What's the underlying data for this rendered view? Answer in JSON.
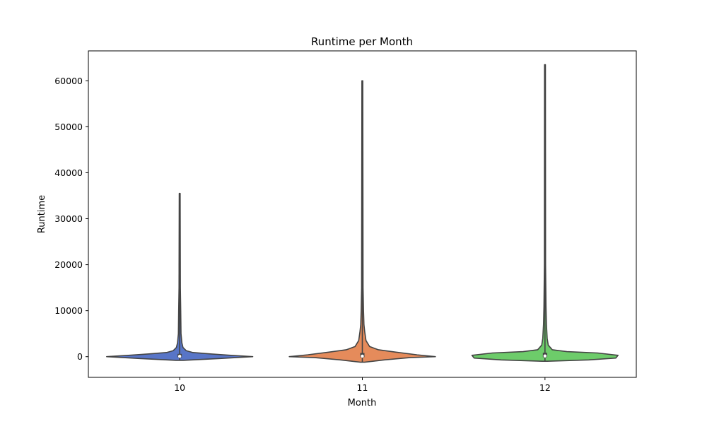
{
  "chart_data": {
    "type": "violin",
    "title": "Runtime per Month",
    "xlabel": "Month",
    "ylabel": "Runtime",
    "categories": [
      "10",
      "11",
      "12"
    ],
    "ylim": [
      -4500,
      66500
    ],
    "yticks": [
      0,
      10000,
      20000,
      30000,
      40000,
      50000,
      60000
    ],
    "yticklabels": [
      "0",
      "10000",
      "20000",
      "30000",
      "40000",
      "50000",
      "60000"
    ],
    "grid": false,
    "legend": "none",
    "colors": [
      "#5875c7",
      "#e58b5b",
      "#6dcc6a"
    ],
    "series": [
      {
        "category": "10",
        "color": "#5875c7",
        "min": -800,
        "max": 35500,
        "median": 80,
        "q1": 10,
        "q3": 450,
        "profile": [
          [
            -800,
            0.05
          ],
          [
            -400,
            0.55
          ],
          [
            0,
            1.0
          ],
          [
            300,
            0.7
          ],
          [
            600,
            0.42
          ],
          [
            900,
            0.18
          ],
          [
            1300,
            0.09
          ],
          [
            2000,
            0.045
          ],
          [
            3000,
            0.03
          ],
          [
            5000,
            0.018
          ],
          [
            10000,
            0.014
          ],
          [
            15000,
            0.009
          ],
          [
            35500,
            0.006
          ]
        ]
      },
      {
        "category": "11",
        "color": "#e58b5b",
        "min": -1200,
        "max": 60000,
        "median": 120,
        "q1": 20,
        "q3": 650,
        "profile": [
          [
            -1200,
            0.03
          ],
          [
            -700,
            0.3
          ],
          [
            -200,
            0.65
          ],
          [
            0,
            1.0
          ],
          [
            400,
            0.75
          ],
          [
            1000,
            0.45
          ],
          [
            1500,
            0.22
          ],
          [
            2200,
            0.1
          ],
          [
            3500,
            0.05
          ],
          [
            5500,
            0.032
          ],
          [
            7000,
            0.022
          ],
          [
            10000,
            0.016
          ],
          [
            15000,
            0.01
          ],
          [
            60000,
            0.006
          ]
        ]
      },
      {
        "category": "12",
        "color": "#6dcc6a",
        "min": -1000,
        "max": 63500,
        "median": 150,
        "q1": 30,
        "q3": 700,
        "profile": [
          [
            -1000,
            0.03
          ],
          [
            -700,
            0.6
          ],
          [
            -300,
            0.97
          ],
          [
            300,
            1.0
          ],
          [
            800,
            0.72
          ],
          [
            1100,
            0.3
          ],
          [
            1500,
            0.1
          ],
          [
            2500,
            0.045
          ],
          [
            4000,
            0.03
          ],
          [
            7000,
            0.02
          ],
          [
            11000,
            0.014
          ],
          [
            20000,
            0.008
          ],
          [
            63500,
            0.006
          ]
        ]
      }
    ]
  }
}
